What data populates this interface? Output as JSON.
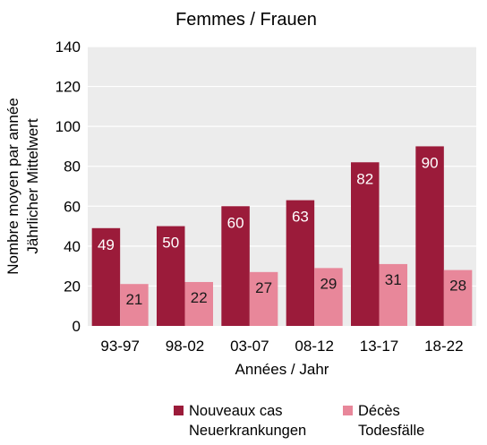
{
  "chart_data": {
    "type": "bar",
    "title": "Femmes / Frauen",
    "xlabel": "Années / Jahr",
    "ylabel_lines": [
      "Nombre moyen par année",
      "Jährlicher Mittelwert"
    ],
    "categories": [
      "93-97",
      "98-02",
      "03-07",
      "08-12",
      "13-17",
      "18-22"
    ],
    "ylim": [
      0,
      140
    ],
    "yticks": [
      0,
      20,
      40,
      60,
      80,
      100,
      120,
      140
    ],
    "grid": true,
    "legend_position": "bottom",
    "series": [
      {
        "name_lines": [
          "Nouveaux cas",
          "Neuerkrankungen"
        ],
        "color": "#9b1b3a",
        "label_color": "#ffffff",
        "values": [
          49,
          50,
          60,
          63,
          82,
          90
        ]
      },
      {
        "name_lines": [
          "Décès",
          "Todesfälle"
        ],
        "color": "#e8879a",
        "label_color": "#1a1a1a",
        "values": [
          21,
          22,
          27,
          29,
          31,
          28
        ]
      }
    ],
    "plot_background": "#ececec",
    "grid_color": "#ffffff"
  }
}
